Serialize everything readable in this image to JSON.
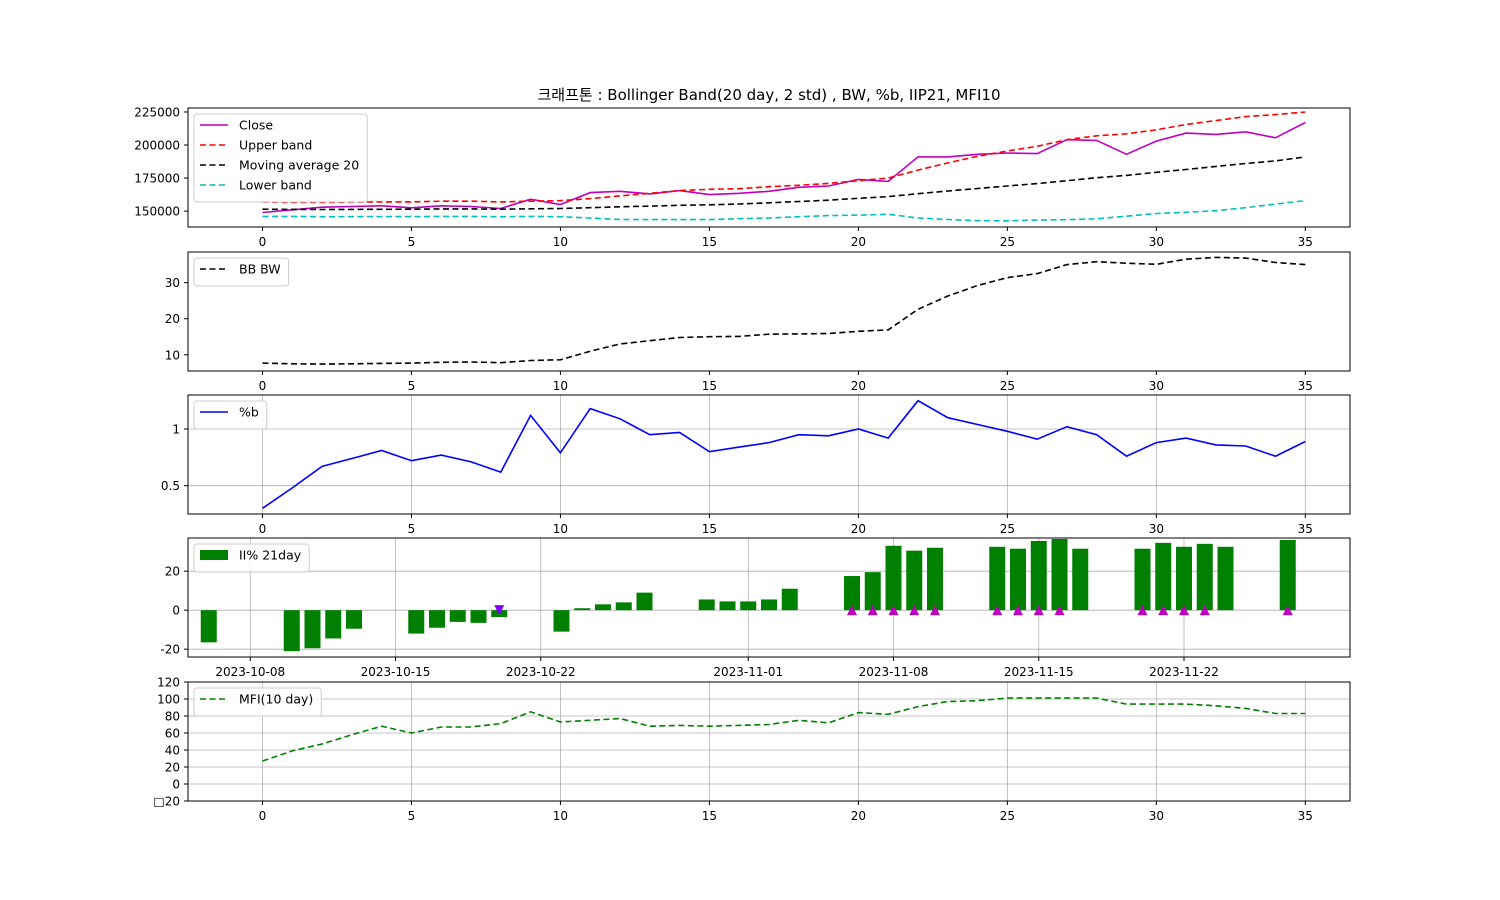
{
  "title": "크래프톤 : Bollinger Band(20 day, 2 std) , BW, %b, IIP21, MFI10",
  "chart_data": [
    {
      "type": "line",
      "panel": "price",
      "x": [
        0,
        1,
        2,
        3,
        4,
        5,
        6,
        7,
        8,
        9,
        10,
        11,
        12,
        13,
        14,
        15,
        16,
        17,
        18,
        19,
        20,
        21,
        22,
        23,
        24,
        25,
        26,
        27,
        28,
        29,
        30,
        31,
        32,
        33,
        34,
        35
      ],
      "xticks": [
        0,
        5,
        10,
        15,
        20,
        25,
        30,
        35
      ],
      "yticks": [
        150000,
        175000,
        200000,
        225000
      ],
      "ylim": [
        138000,
        228000
      ],
      "grid": false,
      "legend_position": "upper-left",
      "series": [
        {
          "name": "Close",
          "color": "#bf00bf",
          "dash": "solid",
          "values": [
            149000,
            151000,
            153000,
            153500,
            154000,
            152500,
            154000,
            153500,
            152000,
            159000,
            155000,
            164000,
            165000,
            163000,
            165500,
            162500,
            163500,
            165000,
            168000,
            169000,
            174000,
            172500,
            191000,
            191000,
            193000,
            194000,
            193500,
            204000,
            203500,
            193000,
            203000,
            209000,
            208000,
            210000,
            205500,
            217000
          ]
        },
        {
          "name": "Upper band",
          "color": "#ff0000",
          "dash": "dashed",
          "values": [
            157000,
            156500,
            156500,
            156800,
            157000,
            157000,
            157500,
            157500,
            157000,
            157500,
            158000,
            159500,
            161500,
            163500,
            165500,
            166500,
            167000,
            168500,
            169500,
            171000,
            173000,
            175000,
            181000,
            186500,
            191500,
            195500,
            199000,
            204000,
            207000,
            208500,
            211500,
            215500,
            218500,
            221500,
            223000,
            225000
          ]
        },
        {
          "name": "Moving average 20",
          "color": "#000000",
          "dash": "dashed",
          "values": [
            151500,
            151300,
            151200,
            151300,
            151400,
            151500,
            151700,
            151700,
            151500,
            151800,
            152000,
            152600,
            153300,
            153800,
            154400,
            154800,
            155400,
            156300,
            157300,
            158300,
            159700,
            161000,
            163200,
            165200,
            167100,
            169000,
            170800,
            173000,
            175300,
            177000,
            179400,
            181500,
            183800,
            186000,
            188000,
            191000
          ]
        },
        {
          "name": "Lower band",
          "color": "#00bfbf",
          "dash": "dashed",
          "values": [
            146000,
            146000,
            145800,
            145900,
            145900,
            145900,
            146000,
            146000,
            145800,
            146000,
            145800,
            144700,
            143700,
            143600,
            143600,
            143600,
            144300,
            144800,
            145800,
            146600,
            147000,
            147600,
            144800,
            143700,
            142800,
            142700,
            143300,
            143500,
            144200,
            146200,
            148200,
            149100,
            150300,
            152600,
            155300,
            158000
          ]
        }
      ]
    },
    {
      "type": "line",
      "panel": "bandwidth",
      "x": [
        0,
        1,
        2,
        3,
        4,
        5,
        6,
        7,
        8,
        9,
        10,
        11,
        12,
        13,
        14,
        15,
        16,
        17,
        18,
        19,
        20,
        21,
        22,
        23,
        24,
        25,
        26,
        27,
        28,
        29,
        30,
        31,
        32,
        33,
        34,
        35
      ],
      "xticks": [
        0,
        5,
        10,
        15,
        20,
        25,
        30,
        35
      ],
      "yticks": [
        10,
        20,
        30
      ],
      "ylim": [
        5.5,
        38.5
      ],
      "grid": false,
      "legend_position": "upper-left",
      "series": [
        {
          "name": "BB BW",
          "color": "#000000",
          "dash": "dashed",
          "values": [
            7.7,
            7.5,
            7.4,
            7.5,
            7.6,
            7.7,
            7.9,
            8.0,
            7.8,
            8.4,
            8.6,
            11.0,
            13.0,
            13.9,
            14.8,
            15.0,
            15.1,
            15.7,
            15.8,
            15.9,
            16.5,
            16.9,
            22.6,
            26.3,
            29.2,
            31.4,
            32.5,
            35.0,
            35.8,
            35.4,
            35.1,
            36.5,
            37.0,
            36.8,
            35.6,
            35.0
          ]
        }
      ]
    },
    {
      "type": "line",
      "panel": "percent_b",
      "x": [
        0,
        1,
        2,
        3,
        4,
        5,
        6,
        7,
        8,
        9,
        10,
        11,
        12,
        13,
        14,
        15,
        16,
        17,
        18,
        19,
        20,
        21,
        22,
        23,
        24,
        25,
        26,
        27,
        28,
        29,
        30,
        31,
        32,
        33,
        34,
        35
      ],
      "xticks": [
        0,
        5,
        10,
        15,
        20,
        25,
        30,
        35
      ],
      "yticks": [
        0.5,
        1.0
      ],
      "ylim": [
        0.25,
        1.3
      ],
      "grid": true,
      "legend_position": "upper-left",
      "series": [
        {
          "name": "%b",
          "color": "#0000ff",
          "dash": "solid",
          "values": [
            0.3,
            0.48,
            0.67,
            0.74,
            0.81,
            0.72,
            0.77,
            0.71,
            0.62,
            1.12,
            0.79,
            1.18,
            1.09,
            0.95,
            0.97,
            0.8,
            0.84,
            0.88,
            0.95,
            0.94,
            1.0,
            0.92,
            1.25,
            1.1,
            1.04,
            0.98,
            0.91,
            1.02,
            0.95,
            0.76,
            0.88,
            0.92,
            0.86,
            0.85,
            0.76,
            0.89
          ]
        }
      ]
    },
    {
      "type": "bar",
      "panel": "iip21",
      "x_axis_type": "date",
      "xticks": [
        "2023-10-08",
        "2023-10-15",
        "2023-10-22",
        "2023-11-01",
        "2023-11-08",
        "2023-11-15",
        "2023-11-22"
      ],
      "xlim": [
        "2023-10-05",
        "2023-11-30"
      ],
      "yticks": [
        -20,
        0,
        20
      ],
      "ylim": [
        -24,
        37
      ],
      "grid": true,
      "legend_position": "upper-left",
      "bar_color": "#008000",
      "series": [
        {
          "name": "II% 21day",
          "points": [
            {
              "x": "2023-10-06",
              "value": -16.5
            },
            {
              "x": "2023-10-10",
              "value": -21
            },
            {
              "x": "2023-10-11",
              "value": -19.5
            },
            {
              "x": "2023-10-12",
              "value": -14.5
            },
            {
              "x": "2023-10-13",
              "value": -9.5
            },
            {
              "x": "2023-10-16",
              "value": -12
            },
            {
              "x": "2023-10-17",
              "value": -9
            },
            {
              "x": "2023-10-18",
              "value": -6
            },
            {
              "x": "2023-10-19",
              "value": -6.5
            },
            {
              "x": "2023-10-20",
              "value": -3.5
            },
            {
              "x": "2023-10-23",
              "value": -11
            },
            {
              "x": "2023-10-24",
              "value": 1
            },
            {
              "x": "2023-10-25",
              "value": 3
            },
            {
              "x": "2023-10-26",
              "value": 4
            },
            {
              "x": "2023-10-27",
              "value": 9
            },
            {
              "x": "2023-10-30",
              "value": 5.5
            },
            {
              "x": "2023-10-31",
              "value": 4.5
            },
            {
              "x": "2023-11-01",
              "value": 4.5
            },
            {
              "x": "2023-11-02",
              "value": 5.5
            },
            {
              "x": "2023-11-03",
              "value": 11
            },
            {
              "x": "2023-11-06",
              "value": 17.5
            },
            {
              "x": "2023-11-07",
              "value": 19.5
            },
            {
              "x": "2023-11-08",
              "value": 33
            },
            {
              "x": "2023-11-09",
              "value": 30.5
            },
            {
              "x": "2023-11-10",
              "value": 32
            },
            {
              "x": "2023-11-13",
              "value": 32.5
            },
            {
              "x": "2023-11-14",
              "value": 31.5
            },
            {
              "x": "2023-11-15",
              "value": 35.5
            },
            {
              "x": "2023-11-16",
              "value": 36.5
            },
            {
              "x": "2023-11-17",
              "value": 31.5
            },
            {
              "x": "2023-11-20",
              "value": 31.5
            },
            {
              "x": "2023-11-21",
              "value": 34.5
            },
            {
              "x": "2023-11-22",
              "value": 32.5
            },
            {
              "x": "2023-11-23",
              "value": 34
            },
            {
              "x": "2023-11-24",
              "value": 32.5
            },
            {
              "x": "2023-11-27",
              "value": 36
            }
          ]
        }
      ],
      "markers": [
        {
          "x": "2023-10-20",
          "value": 0,
          "symbol": "triangle-down",
          "color": "#8000ff"
        },
        {
          "x": "2023-11-06",
          "value": 0,
          "symbol": "triangle-up",
          "color": "#bf00bf"
        },
        {
          "x": "2023-11-07",
          "value": 0,
          "symbol": "triangle-up",
          "color": "#bf00bf"
        },
        {
          "x": "2023-11-08",
          "value": 0,
          "symbol": "triangle-up",
          "color": "#bf00bf"
        },
        {
          "x": "2023-11-09",
          "value": 0,
          "symbol": "triangle-up",
          "color": "#bf00bf"
        },
        {
          "x": "2023-11-10",
          "value": 0,
          "symbol": "triangle-up",
          "color": "#bf00bf"
        },
        {
          "x": "2023-11-13",
          "value": 0,
          "symbol": "triangle-up",
          "color": "#bf00bf"
        },
        {
          "x": "2023-11-14",
          "value": 0,
          "symbol": "triangle-up",
          "color": "#bf00bf"
        },
        {
          "x": "2023-11-15",
          "value": 0,
          "symbol": "triangle-up",
          "color": "#bf00bf"
        },
        {
          "x": "2023-11-16",
          "value": 0,
          "symbol": "triangle-up",
          "color": "#bf00bf"
        },
        {
          "x": "2023-11-20",
          "value": 0,
          "symbol": "triangle-up",
          "color": "#bf00bf"
        },
        {
          "x": "2023-11-21",
          "value": 0,
          "symbol": "triangle-up",
          "color": "#bf00bf"
        },
        {
          "x": "2023-11-22",
          "value": 0,
          "symbol": "triangle-up",
          "color": "#bf00bf"
        },
        {
          "x": "2023-11-23",
          "value": 0,
          "symbol": "triangle-up",
          "color": "#bf00bf"
        },
        {
          "x": "2023-11-27",
          "value": 0,
          "symbol": "triangle-up",
          "color": "#bf00bf"
        }
      ]
    },
    {
      "type": "line",
      "panel": "mfi",
      "x": [
        0,
        1,
        2,
        3,
        4,
        5,
        6,
        7,
        8,
        9,
        10,
        11,
        12,
        13,
        14,
        15,
        16,
        17,
        18,
        19,
        20,
        21,
        22,
        23,
        24,
        25,
        26,
        27,
        28,
        29,
        30,
        31,
        32,
        33,
        34,
        35
      ],
      "xticks": [
        0,
        5,
        10,
        15,
        20,
        25,
        30,
        35
      ],
      "yticks": [
        -20,
        0,
        20,
        40,
        60,
        80,
        100,
        120
      ],
      "ytick_labels": [
        "□20",
        "0",
        "20",
        "40",
        "60",
        "80",
        "100",
        "120"
      ],
      "ylim": [
        -20,
        120
      ],
      "grid": true,
      "legend_position": "upper-left",
      "series": [
        {
          "name": "MFI(10 day)",
          "color": "#008000",
          "dash": "dashed",
          "values": [
            27,
            39,
            47,
            58,
            68,
            60,
            67,
            67,
            71,
            85,
            73,
            75,
            77,
            68,
            69,
            68,
            69,
            70,
            75,
            72,
            84,
            82,
            91,
            97,
            98,
            101,
            101,
            101,
            101,
            94,
            94,
            94,
            92,
            89,
            83,
            83
          ]
        }
      ]
    }
  ]
}
